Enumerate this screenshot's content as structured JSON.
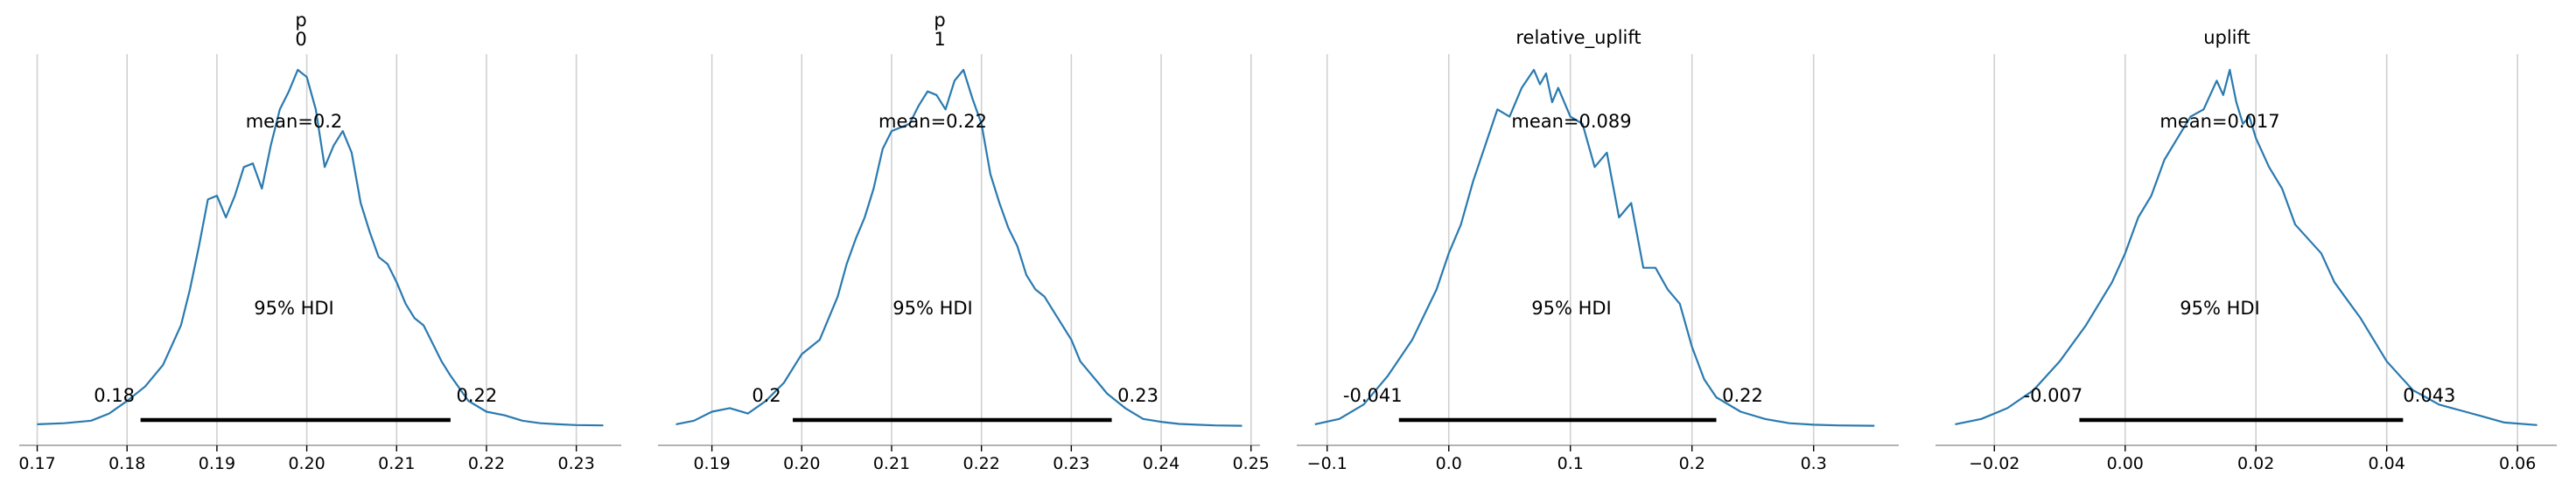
{
  "colors": {
    "line": "#2a7ab0",
    "grid": "#d0d0d0",
    "axis": "#9a9a9a",
    "hdi": "#000000"
  },
  "chart_data": [
    {
      "type": "area",
      "title": [
        "p",
        "0"
      ],
      "xlim": [
        0.168,
        0.235
      ],
      "xticks": [
        0.17,
        0.18,
        0.19,
        0.2,
        0.21,
        0.22,
        0.23
      ],
      "xtick_labels": [
        "0.17",
        "0.18",
        "0.19",
        "0.20",
        "0.21",
        "0.22",
        "0.23"
      ],
      "grid": true,
      "mean_label": "mean=0.2",
      "hdi_label": "95% HDI",
      "hdi": [
        0.1815,
        0.216
      ],
      "hdi_low_label": "0.18",
      "hdi_high_label": "0.22",
      "x": [
        0.17,
        0.173,
        0.176,
        0.178,
        0.18,
        0.182,
        0.184,
        0.186,
        0.187,
        0.188,
        0.189,
        0.19,
        0.191,
        0.192,
        0.193,
        0.194,
        0.195,
        0.196,
        0.197,
        0.198,
        0.199,
        0.2,
        0.201,
        0.202,
        0.203,
        0.204,
        0.205,
        0.206,
        0.207,
        0.208,
        0.209,
        0.21,
        0.211,
        0.212,
        0.213,
        0.214,
        0.215,
        0.216,
        0.218,
        0.22,
        0.222,
        0.224,
        0.226,
        0.228,
        0.23,
        0.233
      ],
      "y": [
        0.005,
        0.008,
        0.015,
        0.035,
        0.07,
        0.11,
        0.17,
        0.28,
        0.38,
        0.5,
        0.63,
        0.64,
        0.58,
        0.64,
        0.72,
        0.73,
        0.66,
        0.78,
        0.88,
        0.93,
        0.99,
        0.97,
        0.88,
        0.72,
        0.78,
        0.82,
        0.76,
        0.62,
        0.54,
        0.47,
        0.45,
        0.4,
        0.34,
        0.3,
        0.28,
        0.23,
        0.18,
        0.14,
        0.07,
        0.04,
        0.03,
        0.015,
        0.008,
        0.005,
        0.003,
        0.002
      ]
    },
    {
      "type": "area",
      "title": [
        "p",
        "1"
      ],
      "xlim": [
        0.184,
        0.251
      ],
      "xticks": [
        0.19,
        0.2,
        0.21,
        0.22,
        0.23,
        0.24,
        0.25
      ],
      "xtick_labels": [
        "0.19",
        "0.20",
        "0.21",
        "0.22",
        "0.23",
        "0.24",
        "0.25"
      ],
      "grid": true,
      "mean_label": "mean=0.22",
      "hdi_label": "95% HDI",
      "hdi": [
        0.199,
        0.2345
      ],
      "hdi_low_label": "0.2",
      "hdi_high_label": "0.23",
      "x": [
        0.186,
        0.188,
        0.19,
        0.192,
        0.194,
        0.196,
        0.198,
        0.2,
        0.202,
        0.204,
        0.205,
        0.206,
        0.207,
        0.208,
        0.209,
        0.21,
        0.211,
        0.212,
        0.213,
        0.214,
        0.215,
        0.216,
        0.217,
        0.218,
        0.219,
        0.22,
        0.221,
        0.222,
        0.223,
        0.224,
        0.225,
        0.226,
        0.227,
        0.228,
        0.229,
        0.23,
        0.231,
        0.232,
        0.233,
        0.234,
        0.236,
        0.238,
        0.24,
        0.242,
        0.244,
        0.246,
        0.249
      ],
      "y": [
        0.005,
        0.015,
        0.04,
        0.05,
        0.035,
        0.07,
        0.12,
        0.2,
        0.24,
        0.36,
        0.45,
        0.52,
        0.58,
        0.66,
        0.77,
        0.82,
        0.83,
        0.84,
        0.89,
        0.93,
        0.92,
        0.88,
        0.96,
        0.99,
        0.91,
        0.84,
        0.7,
        0.62,
        0.55,
        0.5,
        0.42,
        0.38,
        0.36,
        0.32,
        0.28,
        0.24,
        0.18,
        0.15,
        0.12,
        0.09,
        0.05,
        0.02,
        0.012,
        0.006,
        0.004,
        0.002,
        0.001
      ]
    },
    {
      "type": "area",
      "title": [
        "relative_uplift"
      ],
      "xlim": [
        -0.125,
        0.37
      ],
      "xticks": [
        -0.1,
        0.0,
        0.1,
        0.2,
        0.3
      ],
      "xtick_labels": [
        "−0.1",
        "0.0",
        "0.1",
        "0.2",
        "0.3"
      ],
      "grid": true,
      "mean_label": "mean=0.089",
      "hdi_label": "95% HDI",
      "hdi": [
        -0.041,
        0.22
      ],
      "hdi_low_label": "-0.041",
      "hdi_high_label": "0.22",
      "x": [
        -0.11,
        -0.09,
        -0.07,
        -0.05,
        -0.03,
        -0.01,
        0.0,
        0.01,
        0.02,
        0.03,
        0.04,
        0.05,
        0.06,
        0.07,
        0.075,
        0.08,
        0.085,
        0.09,
        0.1,
        0.11,
        0.12,
        0.13,
        0.14,
        0.15,
        0.16,
        0.17,
        0.18,
        0.19,
        0.2,
        0.21,
        0.22,
        0.24,
        0.26,
        0.28,
        0.3,
        0.32,
        0.35
      ],
      "y": [
        0.005,
        0.02,
        0.06,
        0.14,
        0.24,
        0.38,
        0.48,
        0.56,
        0.68,
        0.78,
        0.88,
        0.86,
        0.94,
        0.99,
        0.95,
        0.98,
        0.9,
        0.94,
        0.86,
        0.84,
        0.72,
        0.76,
        0.58,
        0.62,
        0.44,
        0.44,
        0.38,
        0.34,
        0.22,
        0.13,
        0.08,
        0.04,
        0.02,
        0.008,
        0.004,
        0.002,
        0.001
      ]
    },
    {
      "type": "area",
      "title": [
        "uplift"
      ],
      "xlim": [
        -0.029,
        0.066
      ],
      "xticks": [
        -0.02,
        0.0,
        0.02,
        0.04,
        0.06
      ],
      "xtick_labels": [
        "−0.02",
        "0.00",
        "0.02",
        "0.04",
        "0.06"
      ],
      "grid": true,
      "mean_label": "mean=0.017",
      "hdi_label": "95% HDI",
      "hdi": [
        -0.007,
        0.0425
      ],
      "hdi_low_label": "-0.007",
      "hdi_high_label": "0.043",
      "x": [
        -0.026,
        -0.022,
        -0.018,
        -0.014,
        -0.01,
        -0.006,
        -0.002,
        0.0,
        0.002,
        0.004,
        0.006,
        0.008,
        0.01,
        0.012,
        0.013,
        0.014,
        0.015,
        0.016,
        0.017,
        0.018,
        0.019,
        0.02,
        0.022,
        0.024,
        0.026,
        0.028,
        0.03,
        0.032,
        0.034,
        0.036,
        0.038,
        0.04,
        0.042,
        0.044,
        0.046,
        0.048,
        0.05,
        0.052,
        0.054,
        0.058,
        0.063
      ],
      "y": [
        0.005,
        0.02,
        0.05,
        0.1,
        0.18,
        0.28,
        0.4,
        0.48,
        0.58,
        0.64,
        0.74,
        0.8,
        0.86,
        0.88,
        0.92,
        0.96,
        0.92,
        0.99,
        0.9,
        0.84,
        0.86,
        0.8,
        0.72,
        0.66,
        0.56,
        0.52,
        0.48,
        0.4,
        0.35,
        0.3,
        0.24,
        0.18,
        0.14,
        0.1,
        0.08,
        0.06,
        0.05,
        0.04,
        0.03,
        0.01,
        0.003
      ]
    }
  ]
}
